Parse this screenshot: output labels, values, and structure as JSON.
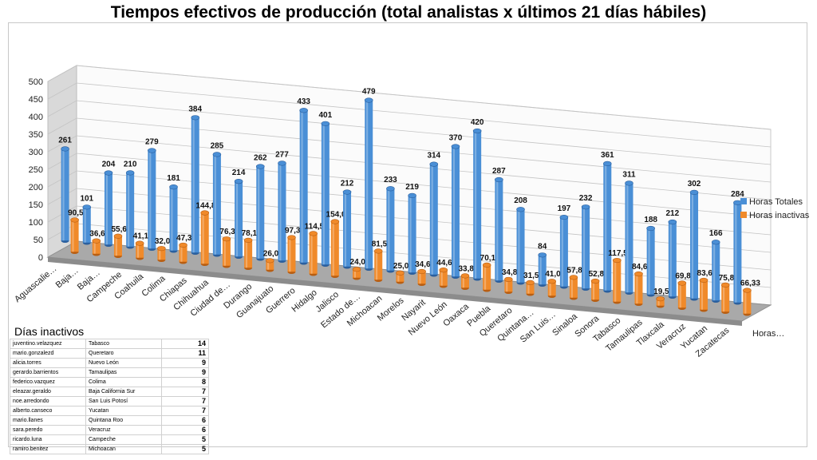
{
  "title": "Tiempos efectivos de producción (total analistas x últimos 21 días hábiles)",
  "chart_data": {
    "type": "bar",
    "variant": "3d-clustered",
    "title": "Tiempos efectivos de producción (total analistas x últimos 21 días hábiles)",
    "categories": [
      "Aguascalie…",
      "Baja…",
      "Baja…",
      "Campeche",
      "Coahuila",
      "Colima",
      "Chiapas",
      "Chihuahua",
      "Ciudad de…",
      "Durango",
      "Guanajuato",
      "Guerrero",
      "Hidalgo",
      "Jalisco",
      "Estado de…",
      "Michoacan",
      "Morelos",
      "Nayarit",
      "Nuevo León",
      "Oaxaca",
      "Puebla",
      "Queretaro",
      "Quintana…",
      "San Luis…",
      "Sinaloa",
      "Sonora",
      "Tabasco",
      "Tamaulipas",
      "Tlaxcala",
      "Veracruz",
      "Yucatan",
      "Zacatecas"
    ],
    "series": [
      {
        "name": "Horas Totales",
        "color": "#4a8fd6",
        "values": [
          261,
          101,
          204,
          210,
          279,
          181,
          384,
          285,
          214,
          262,
          277,
          433,
          401,
          212,
          479,
          233,
          219,
          314,
          370,
          420,
          287,
          208,
          84,
          197,
          232,
          361,
          311,
          188,
          212,
          302,
          166,
          284
        ],
        "labels": [
          "261",
          "101",
          "204",
          "210",
          "279",
          "181",
          "384",
          "285",
          "214",
          "262",
          "277",
          "433",
          "401",
          "212",
          "479",
          "233",
          "219",
          "314",
          "370",
          "420",
          "287",
          "208",
          "84",
          "197",
          "232",
          "361",
          "311",
          "188",
          "212",
          "302",
          "166",
          "284"
        ]
      },
      {
        "name": "Horas inactivas",
        "color": "#f08a2a",
        "values": [
          90.5,
          36.67,
          55.67,
          41.17,
          32.0,
          47.33,
          144.83,
          76.33,
          78.17,
          26.0,
          97.33,
          114.5,
          154.0,
          24.0,
          81.5,
          25.0,
          34.67,
          44.67,
          33.83,
          70.17,
          34.83,
          31.5,
          41.0,
          57.83,
          52.83,
          117.5,
          84.67,
          19.5,
          69.83,
          83.67,
          75.83,
          66.33
        ],
        "labels": [
          "90,50",
          "36,67",
          "55,67",
          "41,17",
          "32,00",
          "47,33",
          "144,83",
          "76,33",
          "78,17",
          "26,00",
          "97,33",
          "114,50",
          "154,00",
          "24,00",
          "81,50",
          "25,00",
          "34,67",
          "44,67",
          "33,83",
          "70,17",
          "34,83",
          "31,50",
          "41,00",
          "57,83",
          "52,83",
          "117,50",
          "84,67",
          "19,50",
          "69,83",
          "83,67",
          "75,83",
          "66,33"
        ]
      }
    ],
    "depth_axis_label": "Horas…",
    "y_ticks": [
      "0",
      "50",
      "100",
      "150",
      "200",
      "250",
      "300",
      "350",
      "400",
      "450",
      "500"
    ],
    "ylim": [
      0,
      500
    ],
    "legend_position": "right"
  },
  "inactive_days": {
    "title": "Días inactivos",
    "rows": [
      {
        "user": "juventino.velazquez",
        "state": "Tabasco",
        "days": "14"
      },
      {
        "user": "mario.gonzalezd",
        "state": "Queretaro",
        "days": "11"
      },
      {
        "user": "alicia.torres",
        "state": "Nuevo León",
        "days": "9"
      },
      {
        "user": "gerardo.barrientos",
        "state": "Tamaulipas",
        "days": "9"
      },
      {
        "user": "federico.vazquez",
        "state": "Colima",
        "days": "8"
      },
      {
        "user": "eleazar.geraldo",
        "state": "Baja California Sur",
        "days": "7"
      },
      {
        "user": "noe.arredondo",
        "state": "San Luis Potosí",
        "days": "7"
      },
      {
        "user": "alberto.canseco",
        "state": "Yucatan",
        "days": "7"
      },
      {
        "user": "mario.llanes",
        "state": "Quintana Roo",
        "days": "6"
      },
      {
        "user": "sara.peredo",
        "state": "Veracruz",
        "days": "6"
      },
      {
        "user": "ricardo.luna",
        "state": "Campeche",
        "days": "5"
      },
      {
        "user": "ramiro.benitez",
        "state": "Michoacan",
        "days": "5"
      }
    ]
  }
}
